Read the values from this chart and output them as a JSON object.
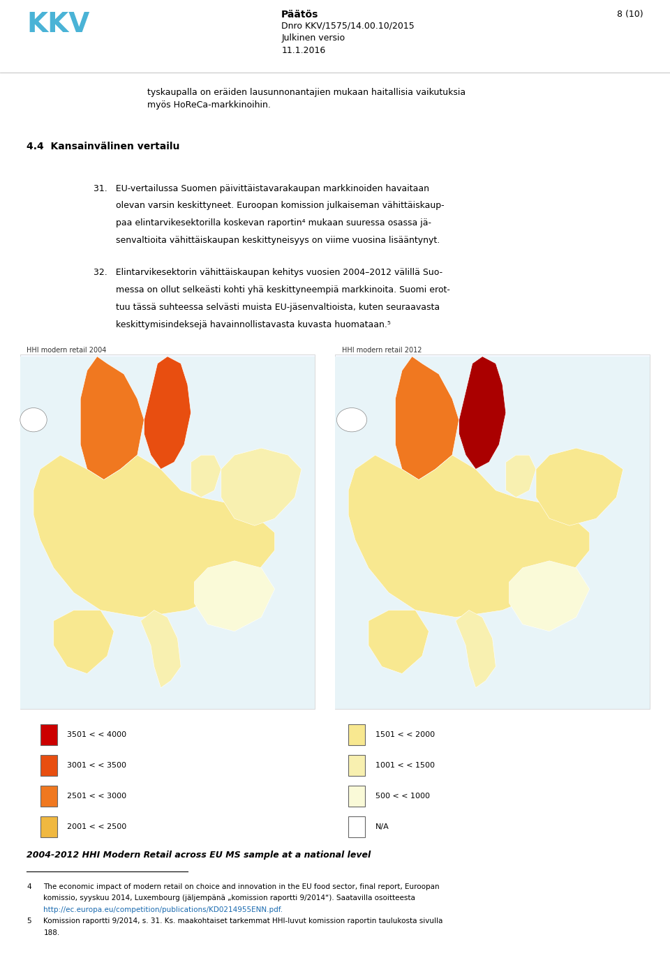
{
  "page_width": 9.6,
  "page_height": 13.73,
  "bg_color": "#ffffff",
  "header": {
    "logo_text": "KKV",
    "logo_color": "#4ab3d6",
    "title_bold": "Päätös",
    "title_info": "Dnro KKV/1575/14.00.10/2015\nJulkinen versio\n11.1.2016",
    "page_num": "8 (10)"
  },
  "body_text_1": "tyskaupalla on eräiden lausunnonantajien mukaan haitallisia vaikutuksia\nmyös HoReCa-markkinoihin.",
  "section_heading": "4.4  Kansainvälinen vertailu",
  "paragraph_31": "31.   EU-vertailussa Suomen päivittäistavarakaupan markkinoiden havaitaan\n        olevan varsin keskittyneet. Euroopan komission julkaiseman vähittäiskaup-\n        paa elintarvikesektorilla koskevan raportin⁴ mukaan suuressa osassa jä-\n        senvaltioita vähittäiskaupan keskittyneisyys on viime vuosina lisääntynyt.",
  "paragraph_32": "32.   Elintarvikesektorin vähittäiskaupan kehitys vuosien 2004–2012 välillä Suo-\n        messa on ollut selkeästi kohti yhä keskittyneempiä markkinoita. Suomi erot-\n        tuu tässä suhteessa selvästi muista EU-jäsenvaltioista, kuten seuraavasta\n        keskittymisindeksejä havainnollistavasta kuvasta huomataan.⁵",
  "map_label_left": "HHI modern retail 2004",
  "map_label_right": "HHI modern retail 2012",
  "map_caption": "2004-2012 HHI Modern Retail across EU MS sample at a national level",
  "legend_items_left": [
    {
      "color": "#cc0000",
      "label": "3501 < < 4000"
    },
    {
      "color": "#e84e10",
      "label": "3001 < < 3500"
    },
    {
      "color": "#f07820",
      "label": "2501 < < 3000"
    },
    {
      "color": "#f0b840",
      "label": "2001 < < 2500"
    }
  ],
  "legend_items_right": [
    {
      "color": "#f8e890",
      "label": "1501 < < 2000"
    },
    {
      "color": "#f8f0b0",
      "label": "1001 < < 1500"
    },
    {
      "color": "#fafad8",
      "label": "500 < < 1000"
    },
    {
      "color": "#ffffff",
      "label": "N/A"
    }
  ],
  "footnote_line": "___________________________",
  "footnote_4": "4   The economic impact of modern retail on choice and innovation in the EU food sector, final report, Euroopan\n    komissio, syyskuu 2014, Luxembourg (jäljempänä \"komission raportti 9/2014\"). Saatavilla osoitteesta\n    http://ec.europa.eu/competition/publications/KD0214955ENN.pdf.",
  "footnote_5": "5   Komission raportti 9/2014, s. 31. Ks. maakohtaiset tarkemmat HHI-luvut komission raportin taulukosta sivulla\n    188.",
  "footnote_url": "http://ec.europa.eu/competition/publications/KD0214955ENN.pdf"
}
